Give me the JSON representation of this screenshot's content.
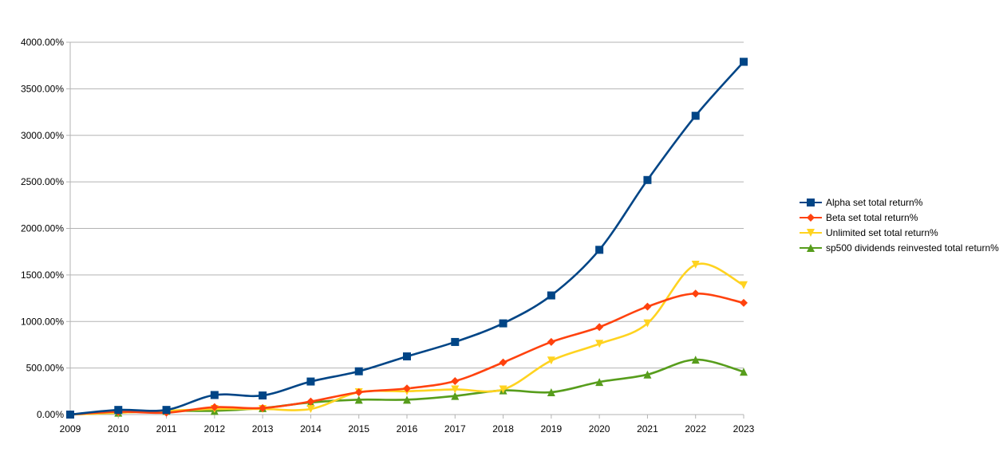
{
  "chart_data": {
    "type": "line",
    "title": "",
    "xlabel": "",
    "ylabel": "",
    "x": [
      "2009",
      "2010",
      "2011",
      "2012",
      "2013",
      "2014",
      "2015",
      "2016",
      "2017",
      "2018",
      "2019",
      "2020",
      "2021",
      "2022",
      "2023"
    ],
    "ylim": [
      0,
      4000
    ],
    "y_ticks": [
      0,
      500,
      1000,
      1500,
      2000,
      2500,
      3000,
      3500,
      4000
    ],
    "y_tick_labels": [
      "0.00%",
      "500.00%",
      "1000.00%",
      "1500.00%",
      "2000.00%",
      "2500.00%",
      "3000.00%",
      "3500.00%",
      "4000.00%"
    ],
    "grid": "horizontal",
    "legend_position": "right",
    "series": [
      {
        "name": "Alpha set total return%",
        "color": "#004586",
        "marker": "square",
        "values": [
          0,
          50,
          50,
          210,
          205,
          355,
          465,
          625,
          780,
          980,
          1280,
          1770,
          2520,
          3210,
          3790
        ]
      },
      {
        "name": "Beta set total return%",
        "color": "#ff420e",
        "marker": "diamond",
        "values": [
          0,
          30,
          20,
          80,
          70,
          140,
          240,
          280,
          360,
          560,
          780,
          940,
          1160,
          1300,
          1200
        ]
      },
      {
        "name": "Unlimited set total return%",
        "color": "#ffd320",
        "marker": "triangle-down",
        "values": [
          0,
          20,
          40,
          60,
          60,
          60,
          240,
          250,
          270,
          270,
          580,
          760,
          980,
          1610,
          1390
        ]
      },
      {
        "name": "sp500 dividends reinvested total return%",
        "color": "#579d1c",
        "marker": "triangle-up",
        "values": [
          0,
          20,
          40,
          40,
          70,
          130,
          160,
          160,
          200,
          260,
          240,
          350,
          430,
          590,
          460
        ]
      }
    ]
  }
}
